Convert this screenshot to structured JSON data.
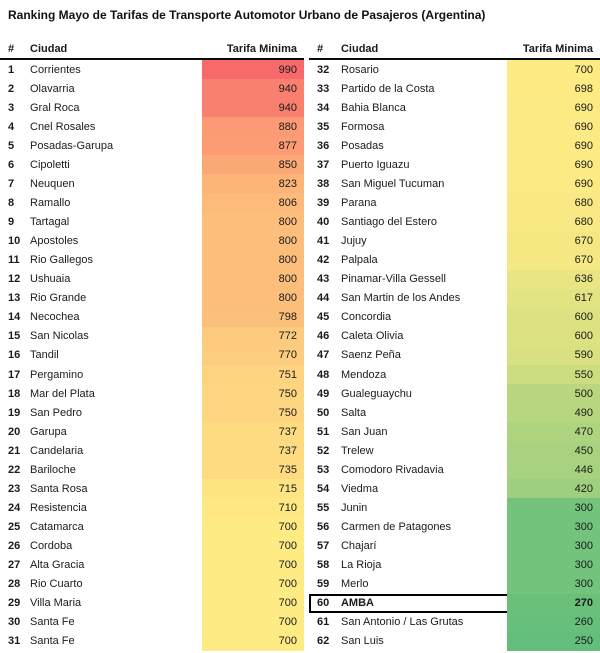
{
  "title": "Ranking Mayo de Tarifas de Transporte Automotor Urbano de Pasajeros (Argentina)",
  "headers": {
    "rank": "#",
    "city": "Ciudad",
    "fare": "Tarifa Minima"
  },
  "chart_data": {
    "type": "table",
    "title": "Ranking Mayo de Tarifas de Transporte Automotor Urbano de Pasajeros (Argentina)",
    "columns": [
      "#",
      "Ciudad",
      "Tarifa Minima"
    ],
    "rows_per_column": 31,
    "highlighted_rank": 60,
    "color_scale": {
      "style": "3-color-scale",
      "min": {
        "value": 250,
        "color": "#63BE7B"
      },
      "mid": {
        "value": 700,
        "color": "#FFEB84"
      },
      "max": {
        "value": 990,
        "color": "#F8696B"
      }
    },
    "rows": [
      [
        1,
        "Corrientes",
        990
      ],
      [
        2,
        "Olavarria",
        940
      ],
      [
        3,
        "Gral Roca",
        940
      ],
      [
        4,
        "Cnel Rosales",
        880
      ],
      [
        5,
        "Posadas-Garupa",
        877
      ],
      [
        6,
        "Cipoletti",
        850
      ],
      [
        7,
        "Neuquen",
        823
      ],
      [
        8,
        "Ramallo",
        806
      ],
      [
        9,
        "Tartagal",
        800
      ],
      [
        10,
        "Apostoles",
        800
      ],
      [
        11,
        "Rio Gallegos",
        800
      ],
      [
        12,
        "Ushuaia",
        800
      ],
      [
        13,
        "Rio Grande",
        800
      ],
      [
        14,
        "Necochea",
        798
      ],
      [
        15,
        "San Nicolas",
        772
      ],
      [
        16,
        "Tandil",
        770
      ],
      [
        17,
        "Pergamino",
        751
      ],
      [
        18,
        "Mar del Plata",
        750
      ],
      [
        19,
        "San Pedro",
        750
      ],
      [
        20,
        "Garupa",
        737
      ],
      [
        21,
        "Candelaria",
        737
      ],
      [
        22,
        "Bariloche",
        735
      ],
      [
        23,
        "Santa Rosa",
        715
      ],
      [
        24,
        "Resistencia",
        710
      ],
      [
        25,
        "Catamarca",
        700
      ],
      [
        26,
        "Cordoba",
        700
      ],
      [
        27,
        "Alta Gracia",
        700
      ],
      [
        28,
        "Rio Cuarto",
        700
      ],
      [
        29,
        "Villa Maria",
        700
      ],
      [
        30,
        "Santa Fe",
        700
      ],
      [
        31,
        "Santa Fe",
        700
      ],
      [
        32,
        "Rosario",
        700
      ],
      [
        33,
        "Partido de la Costa",
        698
      ],
      [
        34,
        "Bahia Blanca",
        690
      ],
      [
        35,
        "Formosa",
        690
      ],
      [
        36,
        "Posadas",
        690
      ],
      [
        37,
        "Puerto Iguazu",
        690
      ],
      [
        38,
        "San Miguel Tucuman",
        690
      ],
      [
        39,
        "Parana",
        680
      ],
      [
        40,
        "Santiago del Estero",
        680
      ],
      [
        41,
        "Jujuy",
        670
      ],
      [
        42,
        "Palpala",
        670
      ],
      [
        43,
        "Pinamar-Villa Gessell",
        636
      ],
      [
        44,
        "San Martin de los Andes",
        617
      ],
      [
        45,
        "Concordia",
        600
      ],
      [
        46,
        "Caleta Olivia",
        600
      ],
      [
        47,
        "Saenz Peña",
        590
      ],
      [
        48,
        "Mendoza",
        550
      ],
      [
        49,
        "Gualeguaychu",
        500
      ],
      [
        50,
        "Salta",
        490
      ],
      [
        51,
        "San Juan",
        470
      ],
      [
        52,
        "Trelew",
        450
      ],
      [
        53,
        "Comodoro Rivadavia",
        446
      ],
      [
        54,
        "Viedma",
        420
      ],
      [
        55,
        "Junin",
        300
      ],
      [
        56,
        "Carmen de Patagones",
        300
      ],
      [
        57,
        "Chajarí",
        300
      ],
      [
        58,
        "La Rioja",
        300
      ],
      [
        59,
        "Merlo",
        300
      ],
      [
        60,
        "AMBA",
        270
      ],
      [
        61,
        "San Antonio / Las Grutas",
        260
      ],
      [
        62,
        "San Luis",
        250
      ]
    ]
  }
}
